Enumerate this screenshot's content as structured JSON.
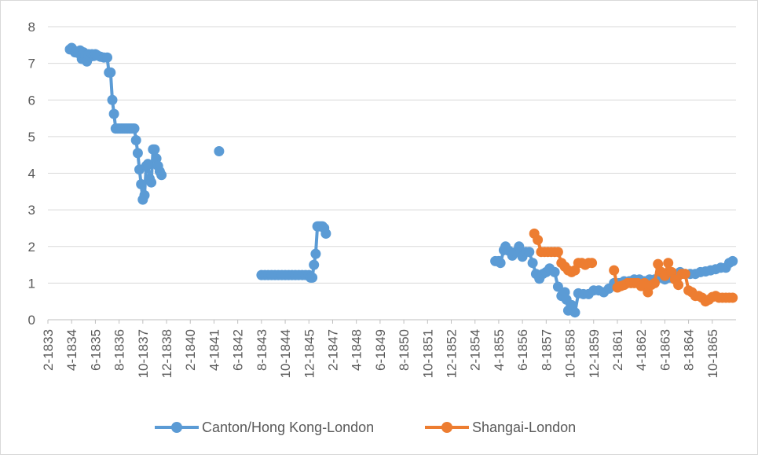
{
  "chart_data": {
    "type": "line",
    "title": "",
    "xlabel": "",
    "ylabel": "",
    "ylim": [
      0,
      8
    ],
    "y_ticks": [
      "0",
      "1",
      "2",
      "3",
      "4",
      "5",
      "6",
      "7",
      "8"
    ],
    "x_ticks": [
      "2-1833",
      "4-1834",
      "6-1835",
      "8-1836",
      "10-1837",
      "12-1838",
      "2-1840",
      "4-1841",
      "6-1842",
      "8-1843",
      "10-1844",
      "12-1845",
      "2-1847",
      "4-1848",
      "6-1849",
      "8-1850",
      "10-1851",
      "12-1852",
      "2-1854",
      "4-1855",
      "6-1856",
      "8-1857",
      "10-1858",
      "12-1859",
      "2-1861",
      "4-1862",
      "6-1863",
      "8-1864",
      "10-1865"
    ],
    "grid": "horizontal",
    "legend_position": "bottom",
    "series": [
      {
        "name": "Canton/Hong Kong-London",
        "color": "#5b9bd5",
        "segments": [
          [
            [
              "1834-03",
              7.38
            ],
            [
              "1834-04",
              7.42
            ],
            [
              "1834-05",
              7.36
            ],
            [
              "1834-06",
              7.3
            ],
            [
              "1834-07",
              7.32
            ],
            [
              "1834-08",
              7.28
            ],
            [
              "1834-09",
              7.35
            ],
            [
              "1834-10",
              7.12
            ],
            [
              "1834-11",
              7.3
            ],
            [
              "1834-12",
              7.2
            ],
            [
              "1835-01",
              7.05
            ],
            [
              "1835-02",
              7.25
            ],
            [
              "1835-03",
              7.18
            ],
            [
              "1835-04",
              7.25
            ],
            [
              "1835-05",
              7.2
            ],
            [
              "1835-06",
              7.25
            ],
            [
              "1835-07",
              7.22
            ],
            [
              "1835-09",
              7.18
            ],
            [
              "1835-11",
              7.16
            ],
            [
              "1836-01",
              7.16
            ],
            [
              "1836-02",
              6.75
            ],
            [
              "1836-03",
              6.75
            ],
            [
              "1836-04",
              6.0
            ],
            [
              "1836-05",
              5.62
            ],
            [
              "1836-06",
              5.22
            ],
            [
              "1836-07",
              5.22
            ],
            [
              "1836-08",
              5.22
            ],
            [
              "1836-09",
              5.22
            ],
            [
              "1836-10",
              5.22
            ],
            [
              "1836-11",
              5.22
            ],
            [
              "1836-12",
              5.22
            ],
            [
              "1837-01",
              5.22
            ],
            [
              "1837-02",
              5.22
            ],
            [
              "1837-03",
              5.22
            ],
            [
              "1837-04",
              5.22
            ],
            [
              "1837-05",
              5.22
            ],
            [
              "1837-06",
              4.9
            ],
            [
              "1837-07",
              4.55
            ],
            [
              "1837-08",
              4.1
            ],
            [
              "1837-09",
              3.7
            ],
            [
              "1837-10",
              3.28
            ],
            [
              "1837-11",
              3.4
            ],
            [
              "1837-12",
              4.2
            ],
            [
              "1838-01",
              4.25
            ],
            [
              "1838-02",
              3.85
            ],
            [
              "1838-03",
              3.75
            ],
            [
              "1838-04",
              4.65
            ],
            [
              "1838-05",
              4.65
            ],
            [
              "1838-06",
              4.4
            ],
            [
              "1838-07",
              4.2
            ],
            [
              "1838-08",
              4.05
            ],
            [
              "1838-09",
              3.95
            ]
          ],
          [
            [
              "1841-07",
              4.6
            ]
          ],
          [
            [
              "1843-08",
              1.22
            ],
            [
              "1843-10",
              1.22
            ],
            [
              "1843-12",
              1.22
            ],
            [
              "1844-02",
              1.22
            ],
            [
              "1844-04",
              1.22
            ],
            [
              "1844-06",
              1.22
            ],
            [
              "1844-08",
              1.22
            ],
            [
              "1844-10",
              1.22
            ],
            [
              "1844-12",
              1.22
            ],
            [
              "1845-02",
              1.22
            ],
            [
              "1845-04",
              1.22
            ],
            [
              "1845-06",
              1.22
            ],
            [
              "1845-08",
              1.22
            ],
            [
              "1845-10",
              1.22
            ],
            [
              "1845-12",
              1.22
            ],
            [
              "1846-01",
              1.15
            ],
            [
              "1846-02",
              1.15
            ],
            [
              "1846-03",
              1.5
            ],
            [
              "1846-04",
              1.8
            ],
            [
              "1846-05",
              2.55
            ],
            [
              "1846-06",
              2.55
            ],
            [
              "1846-07",
              2.55
            ],
            [
              "1846-08",
              2.55
            ],
            [
              "1846-09",
              2.5
            ],
            [
              "1846-10",
              2.35
            ]
          ],
          [
            [
              "1855-02",
              1.6
            ],
            [
              "1855-04",
              1.6
            ],
            [
              "1855-05",
              1.55
            ],
            [
              "1855-07",
              1.9
            ],
            [
              "1855-08",
              2.0
            ],
            [
              "1855-10",
              1.88
            ],
            [
              "1855-12",
              1.75
            ],
            [
              "1856-02",
              1.85
            ],
            [
              "1856-04",
              2.0
            ],
            [
              "1856-06",
              1.72
            ],
            [
              "1856-08",
              1.85
            ],
            [
              "1856-10",
              1.85
            ],
            [
              "1856-12",
              1.55
            ],
            [
              "1857-02",
              1.25
            ],
            [
              "1857-04",
              1.12
            ],
            [
              "1857-06",
              1.25
            ],
            [
              "1857-08",
              1.3
            ],
            [
              "1857-10",
              1.4
            ],
            [
              "1858-01",
              1.3
            ],
            [
              "1858-03",
              0.9
            ],
            [
              "1858-05",
              0.65
            ],
            [
              "1858-07",
              0.75
            ],
            [
              "1858-08",
              0.55
            ],
            [
              "1858-09",
              0.25
            ],
            [
              "1858-11",
              0.4
            ],
            [
              "1859-01",
              0.2
            ],
            [
              "1859-03",
              0.72
            ],
            [
              "1859-06",
              0.7
            ],
            [
              "1859-09",
              0.7
            ],
            [
              "1859-12",
              0.8
            ],
            [
              "1860-03",
              0.8
            ],
            [
              "1860-06",
              0.75
            ],
            [
              "1860-09",
              0.85
            ],
            [
              "1860-12",
              1.0
            ],
            [
              "1861-03",
              1.0
            ],
            [
              "1861-06",
              1.05
            ],
            [
              "1861-09",
              1.05
            ],
            [
              "1861-12",
              1.1
            ],
            [
              "1862-03",
              1.1
            ],
            [
              "1862-06",
              1.05
            ],
            [
              "1862-09",
              1.1
            ],
            [
              "1862-12",
              1.1
            ],
            [
              "1863-03",
              1.15
            ],
            [
              "1863-06",
              1.1
            ],
            [
              "1863-09",
              1.15
            ],
            [
              "1863-12",
              1.25
            ],
            [
              "1864-03",
              1.3
            ],
            [
              "1864-06",
              1.25
            ],
            [
              "1864-09",
              1.25
            ],
            [
              "1864-12",
              1.25
            ],
            [
              "1865-03",
              1.3
            ],
            [
              "1865-06",
              1.32
            ],
            [
              "1865-09",
              1.35
            ],
            [
              "1865-12",
              1.38
            ],
            [
              "1866-03",
              1.42
            ],
            [
              "1866-06",
              1.42
            ],
            [
              "1866-08",
              1.55
            ],
            [
              "1866-10",
              1.6
            ]
          ]
        ]
      },
      {
        "name": "Shangai-London",
        "color": "#ed7d31",
        "segments": [
          [
            [
              "1857-01",
              2.35
            ],
            [
              "1857-03",
              2.18
            ],
            [
              "1857-05",
              1.85
            ],
            [
              "1857-07",
              1.85
            ],
            [
              "1857-09",
              1.85
            ],
            [
              "1857-11",
              1.85
            ],
            [
              "1858-01",
              1.85
            ],
            [
              "1858-03",
              1.85
            ],
            [
              "1858-05",
              1.55
            ],
            [
              "1858-07",
              1.45
            ],
            [
              "1858-09",
              1.35
            ],
            [
              "1858-11",
              1.3
            ],
            [
              "1859-01",
              1.35
            ],
            [
              "1859-03",
              1.55
            ],
            [
              "1859-05",
              1.55
            ],
            [
              "1859-07",
              1.5
            ],
            [
              "1859-09",
              1.55
            ],
            [
              "1859-11",
              1.55
            ]
          ],
          [
            [
              "1860-12",
              1.35
            ],
            [
              "1861-02",
              0.88
            ],
            [
              "1861-04",
              0.92
            ],
            [
              "1861-06",
              0.95
            ],
            [
              "1861-08",
              1.0
            ],
            [
              "1861-10",
              1.0
            ],
            [
              "1861-12",
              1.0
            ],
            [
              "1862-02",
              1.0
            ],
            [
              "1862-04",
              0.92
            ],
            [
              "1862-06",
              1.0
            ],
            [
              "1862-08",
              0.75
            ],
            [
              "1862-10",
              0.95
            ],
            [
              "1862-12",
              1.0
            ],
            [
              "1863-02",
              1.52
            ],
            [
              "1863-04",
              1.3
            ],
            [
              "1863-06",
              1.2
            ],
            [
              "1863-08",
              1.55
            ],
            [
              "1863-10",
              1.3
            ],
            [
              "1863-12",
              1.1
            ],
            [
              "1864-02",
              0.95
            ],
            [
              "1864-04",
              1.25
            ],
            [
              "1864-06",
              1.25
            ],
            [
              "1864-08",
              0.8
            ],
            [
              "1864-10",
              0.75
            ],
            [
              "1864-12",
              0.65
            ],
            [
              "1865-02",
              0.65
            ],
            [
              "1865-04",
              0.6
            ],
            [
              "1865-06",
              0.5
            ],
            [
              "1865-08",
              0.55
            ],
            [
              "1865-10",
              0.62
            ],
            [
              "1865-12",
              0.65
            ],
            [
              "1866-02",
              0.6
            ],
            [
              "1866-04",
              0.6
            ],
            [
              "1866-06",
              0.6
            ],
            [
              "1866-08",
              0.6
            ],
            [
              "1866-10",
              0.6
            ]
          ]
        ]
      }
    ]
  }
}
